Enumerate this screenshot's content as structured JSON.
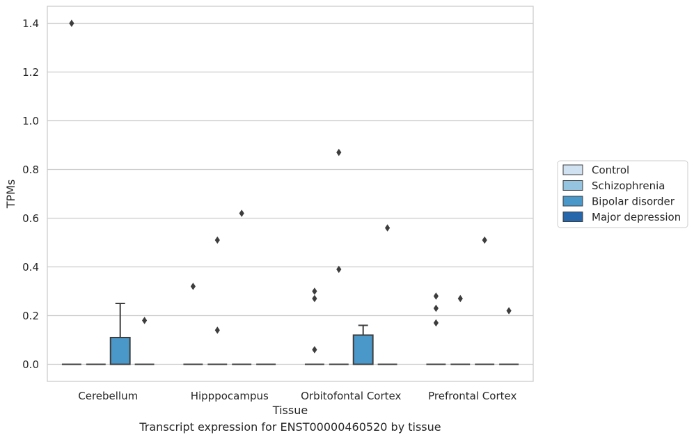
{
  "caption": "Transcript expression for ENST00000460520 by tissue",
  "chart_data": {
    "type": "box",
    "title": "",
    "xlabel": "Tissue",
    "ylabel": "TPMs",
    "ylim": [
      -0.07,
      1.47
    ],
    "yticks": [
      0.0,
      0.2,
      0.4,
      0.6,
      0.8,
      1.0,
      1.2,
      1.4
    ],
    "ytick_labels": [
      "0.0",
      "0.2",
      "0.4",
      "0.6",
      "0.8",
      "1.0",
      "1.2",
      "1.4"
    ],
    "grid": "horizontal",
    "legend_position": "right",
    "categories": [
      "Cerebellum",
      "Hipppocampus",
      "Orbitofontal Cortex",
      "Prefrontal Cortex"
    ],
    "series": [
      {
        "name": "Control",
        "color": "#d0e1f2"
      },
      {
        "name": "Schizophrenia",
        "color": "#94c4df"
      },
      {
        "name": "Bipolar disorder",
        "color": "#4a98c9"
      },
      {
        "name": "Major depression",
        "color": "#2666ab"
      }
    ],
    "boxes": [
      {
        "category": "Cerebellum",
        "series": "Control",
        "q1": 0,
        "median": 0,
        "q3": 0,
        "whisker_low": 0,
        "whisker_high": 0,
        "outliers": [
          1.4
        ]
      },
      {
        "category": "Cerebellum",
        "series": "Schizophrenia",
        "q1": 0,
        "median": 0,
        "q3": 0,
        "whisker_low": 0,
        "whisker_high": 0,
        "outliers": []
      },
      {
        "category": "Cerebellum",
        "series": "Bipolar disorder",
        "q1": 0,
        "median": 0,
        "q3": 0.11,
        "whisker_low": 0,
        "whisker_high": 0.25,
        "outliers": []
      },
      {
        "category": "Cerebellum",
        "series": "Major depression",
        "q1": 0,
        "median": 0,
        "q3": 0,
        "whisker_low": 0,
        "whisker_high": 0,
        "outliers": [
          0.18
        ]
      },
      {
        "category": "Hipppocampus",
        "series": "Control",
        "q1": 0,
        "median": 0,
        "q3": 0,
        "whisker_low": 0,
        "whisker_high": 0,
        "outliers": [
          0.32
        ]
      },
      {
        "category": "Hipppocampus",
        "series": "Schizophrenia",
        "q1": 0,
        "median": 0,
        "q3": 0,
        "whisker_low": 0,
        "whisker_high": 0,
        "outliers": [
          0.51,
          0.14
        ]
      },
      {
        "category": "Hipppocampus",
        "series": "Bipolar disorder",
        "q1": 0,
        "median": 0,
        "q3": 0,
        "whisker_low": 0,
        "whisker_high": 0,
        "outliers": [
          0.62
        ]
      },
      {
        "category": "Hipppocampus",
        "series": "Major depression",
        "q1": 0,
        "median": 0,
        "q3": 0,
        "whisker_low": 0,
        "whisker_high": 0,
        "outliers": []
      },
      {
        "category": "Orbitofontal Cortex",
        "series": "Control",
        "q1": 0,
        "median": 0,
        "q3": 0,
        "whisker_low": 0,
        "whisker_high": 0,
        "outliers": [
          0.3,
          0.27,
          0.06
        ]
      },
      {
        "category": "Orbitofontal Cortex",
        "series": "Schizophrenia",
        "q1": 0,
        "median": 0,
        "q3": 0,
        "whisker_low": 0,
        "whisker_high": 0,
        "outliers": [
          0.87,
          0.39
        ]
      },
      {
        "category": "Orbitofontal Cortex",
        "series": "Bipolar disorder",
        "q1": 0,
        "median": 0,
        "q3": 0.12,
        "whisker_low": 0,
        "whisker_high": 0.16,
        "outliers": []
      },
      {
        "category": "Orbitofontal Cortex",
        "series": "Major depression",
        "q1": 0,
        "median": 0,
        "q3": 0,
        "whisker_low": 0,
        "whisker_high": 0,
        "outliers": [
          0.56
        ]
      },
      {
        "category": "Prefrontal Cortex",
        "series": "Control",
        "q1": 0,
        "median": 0,
        "q3": 0,
        "whisker_low": 0,
        "whisker_high": 0,
        "outliers": [
          0.28,
          0.23,
          0.17
        ]
      },
      {
        "category": "Prefrontal Cortex",
        "series": "Schizophrenia",
        "q1": 0,
        "median": 0,
        "q3": 0,
        "whisker_low": 0,
        "whisker_high": 0,
        "outliers": [
          0.27
        ]
      },
      {
        "category": "Prefrontal Cortex",
        "series": "Bipolar disorder",
        "q1": 0,
        "median": 0,
        "q3": 0,
        "whisker_low": 0,
        "whisker_high": 0,
        "outliers": [
          0.51
        ]
      },
      {
        "category": "Prefrontal Cortex",
        "series": "Major depression",
        "q1": 0,
        "median": 0,
        "q3": 0,
        "whisker_low": 0,
        "whisker_high": 0,
        "outliers": [
          0.22
        ]
      }
    ]
  }
}
